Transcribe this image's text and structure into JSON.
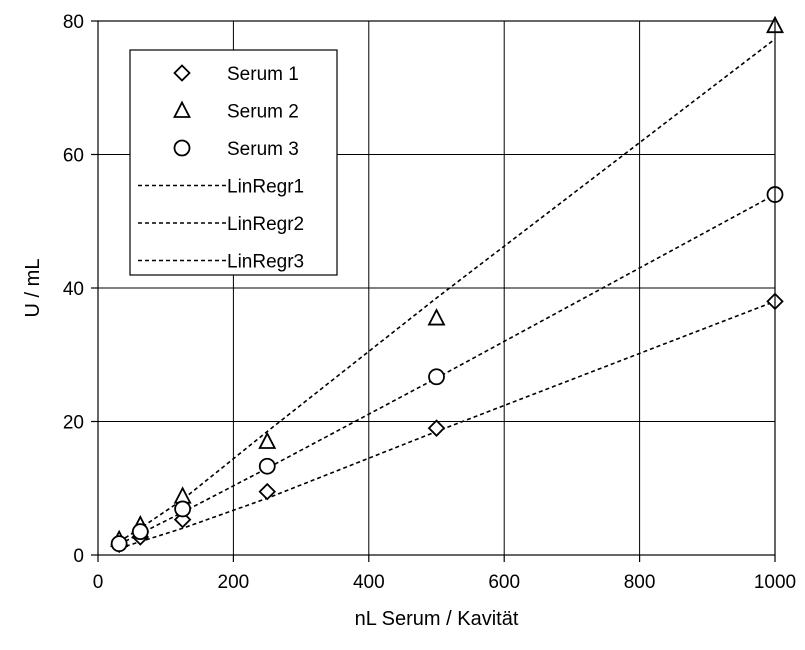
{
  "chart_data": {
    "type": "scatter",
    "title": "",
    "xlabel": "nL Serum / Kavität",
    "ylabel": "U / mL",
    "xlim": [
      0,
      1000
    ],
    "ylim": [
      0,
      80
    ],
    "x_ticks": [
      0,
      200,
      400,
      600,
      800,
      1000
    ],
    "y_ticks": [
      0,
      20,
      40,
      60,
      80
    ],
    "grid": true,
    "legend_position": "top-left",
    "series": [
      {
        "name": "Serum 1",
        "marker": "diamond",
        "x": [
          31.25,
          62.5,
          125,
          250,
          500,
          1000
        ],
        "y": [
          1.6,
          2.7,
          5.3,
          9.5,
          19.0,
          38.0
        ]
      },
      {
        "name": "Serum 2",
        "marker": "triangle",
        "x": [
          31.25,
          62.5,
          125,
          250,
          500,
          1000
        ],
        "y": [
          2.3,
          4.5,
          8.8,
          17.0,
          35.5,
          79.3
        ]
      },
      {
        "name": "Serum 3",
        "marker": "circle",
        "x": [
          31.25,
          62.5,
          125,
          250,
          500,
          1000
        ],
        "y": [
          1.7,
          3.5,
          6.9,
          13.3,
          26.7,
          54.0
        ]
      }
    ],
    "regressions": [
      {
        "name": "LinRegr1",
        "points": [
          [
            31.25,
            1.0
          ],
          [
            62.5,
            2.0
          ],
          [
            125,
            4.0
          ],
          [
            250,
            8.5
          ],
          [
            500,
            18.5
          ],
          [
            1000,
            38.0
          ]
        ]
      },
      {
        "name": "LinRegr2",
        "points": [
          [
            31.25,
            2.0
          ],
          [
            62.5,
            4.0
          ],
          [
            125,
            8.3
          ],
          [
            250,
            18.5
          ],
          [
            500,
            38.5
          ],
          [
            1000,
            77.3
          ]
        ]
      },
      {
        "name": "LinRegr3",
        "points": [
          [
            31.25,
            1.6
          ],
          [
            62.5,
            3.2
          ],
          [
            125,
            6.4
          ],
          [
            250,
            13.0
          ],
          [
            500,
            26.5
          ],
          [
            1000,
            54.0
          ]
        ]
      }
    ]
  }
}
